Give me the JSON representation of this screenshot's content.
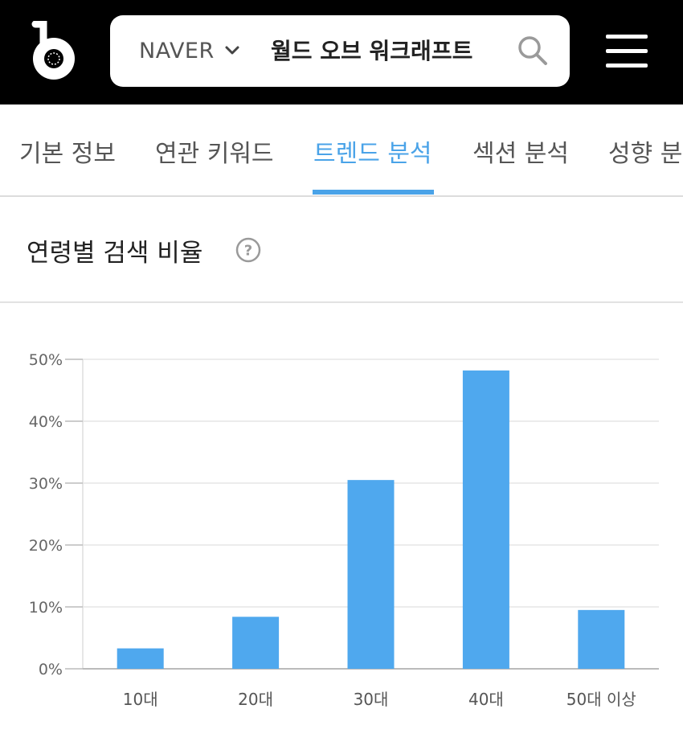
{
  "header": {
    "logo_icon": "b-logo-icon",
    "search": {
      "engine": "NAVER",
      "engine_icon": "chevron-down-icon",
      "query": "월드 오브 워크래프트",
      "search_icon": "search-icon"
    },
    "menu_icon": "hamburger-menu-icon"
  },
  "tabs": [
    {
      "label": "기본 정보",
      "active": false
    },
    {
      "label": "연관 키워드",
      "active": false
    },
    {
      "label": "트렌드 분석",
      "active": true
    },
    {
      "label": "섹션 분석",
      "active": false
    },
    {
      "label": "성향 분석",
      "active": false
    }
  ],
  "section": {
    "title": "연령별 검색 비율",
    "help_icon": "question-circle-icon"
  },
  "colors": {
    "accent": "#4aa3e8",
    "bar": "#4fa8ee",
    "header_bg": "#000000"
  },
  "chart_data": {
    "type": "bar",
    "categories": [
      "10대",
      "20대",
      "30대",
      "40대",
      "50대 이상"
    ],
    "values": [
      3.3,
      8.4,
      30.5,
      48.2,
      9.5
    ],
    "unit": "%",
    "ylim": [
      0,
      50
    ],
    "yticks": [
      0,
      10,
      20,
      30,
      40,
      50
    ],
    "ytick_labels": [
      "0%",
      "10%",
      "20%",
      "30%",
      "40%",
      "50%"
    ],
    "grid": true,
    "title": "",
    "xlabel": "",
    "ylabel": ""
  }
}
